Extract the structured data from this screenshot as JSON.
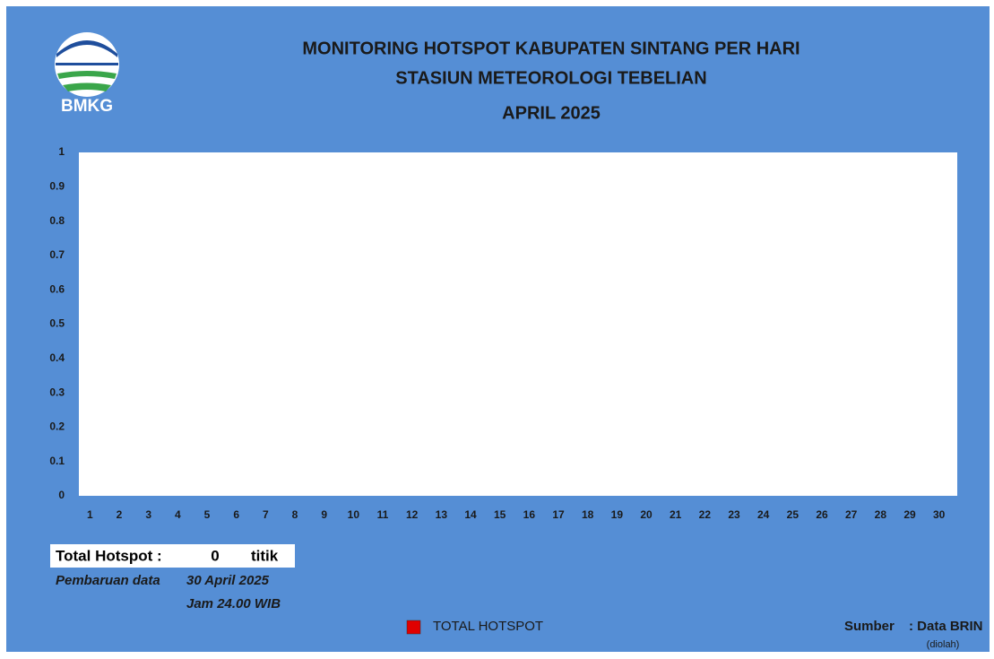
{
  "logo_text": "BMKG",
  "chart_data": {
    "type": "bar",
    "title": [
      "MONITORING HOTSPOT KABUPATEN SINTANG PER HARI",
      "STASIUN METEOROLOGI TEBELIAN",
      "APRIL 2025"
    ],
    "categories": [
      "1",
      "2",
      "3",
      "4",
      "5",
      "6",
      "7",
      "8",
      "9",
      "10",
      "11",
      "12",
      "13",
      "14",
      "15",
      "16",
      "17",
      "18",
      "19",
      "20",
      "21",
      "22",
      "23",
      "24",
      "25",
      "26",
      "27",
      "28",
      "29",
      "30"
    ],
    "series": [
      {
        "name": "TOTAL HOTSPOT",
        "color": "#e00000",
        "values": [
          0,
          0,
          0,
          0,
          0,
          0,
          0,
          0,
          0,
          0,
          0,
          0,
          0,
          0,
          0,
          0,
          0,
          0,
          0,
          0,
          0,
          0,
          0,
          0,
          0,
          0,
          0,
          0,
          0,
          0
        ]
      }
    ],
    "ylim": [
      0,
      1
    ],
    "yticks": [
      0,
      0.1,
      0.2,
      0.3,
      0.4,
      0.5,
      0.6,
      0.7,
      0.8,
      0.9,
      1
    ],
    "grid": false,
    "legend": "bottom"
  },
  "summary": {
    "label": "Total Hotspot :",
    "value": 0,
    "unit": "titik"
  },
  "update": {
    "label": "Pembaruan data",
    "date": "30 April 2025",
    "time": "Jam 24.00 WIB"
  },
  "source": {
    "label": "Sumber",
    "value": ": Data BRIN",
    "note": "(diolah)"
  }
}
